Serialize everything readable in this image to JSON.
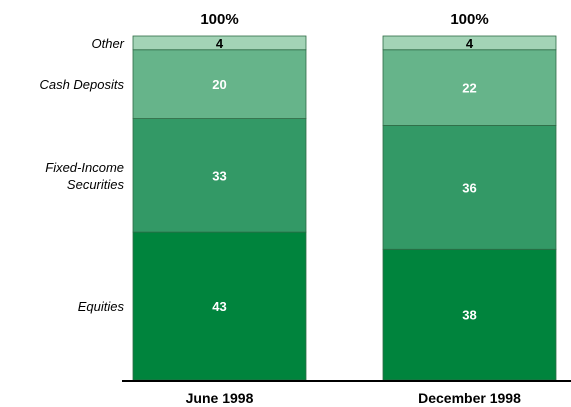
{
  "chart_data": {
    "type": "bar",
    "stacked": true,
    "categories": [
      "June 1998",
      "December 1998"
    ],
    "series": [
      {
        "name": "Equities",
        "values": [
          43,
          38
        ],
        "color": "#00843d",
        "label_color": "#ffffff"
      },
      {
        "name": "Fixed-Income Securities",
        "values": [
          33,
          36
        ],
        "color": "#339966",
        "label_color": "#ffffff"
      },
      {
        "name": "Cash Deposits",
        "values": [
          20,
          22
        ],
        "color": "#66b48a",
        "label_color": "#ffffff"
      },
      {
        "name": "Other",
        "values": [
          4,
          4
        ],
        "color": "#a3d3b6",
        "label_color": "#000000"
      }
    ],
    "totals": [
      "100%",
      "100%"
    ],
    "ylim": [
      0,
      100
    ],
    "legend": "left-inline"
  }
}
